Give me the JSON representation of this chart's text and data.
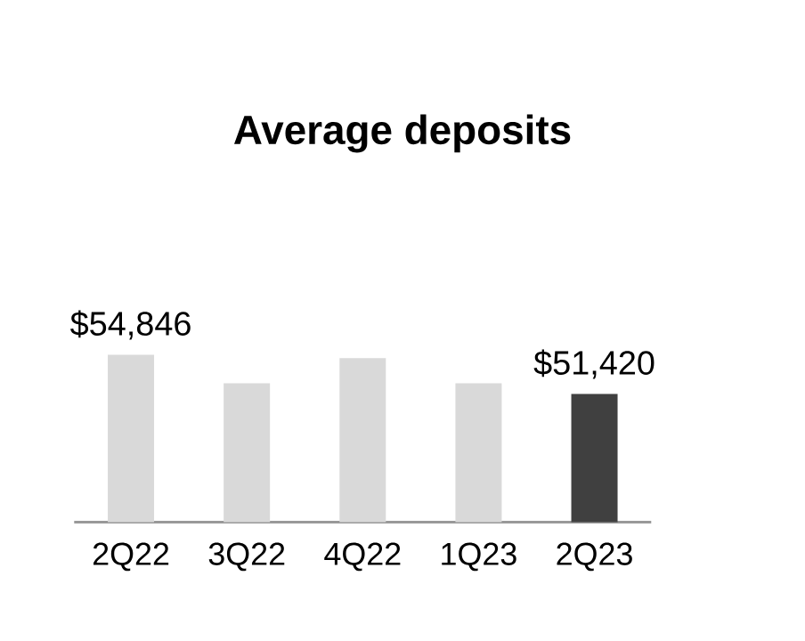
{
  "chart_data": {
    "type": "bar",
    "title": "Average deposits",
    "categories": [
      "2Q22",
      "3Q22",
      "4Q22",
      "1Q23",
      "2Q23"
    ],
    "values": [
      54846,
      52350,
      54550,
      52350,
      51420
    ],
    "colors": [
      "#d9d9d9",
      "#d9d9d9",
      "#d9d9d9",
      "#d9d9d9",
      "#404040"
    ],
    "value_labels": [
      "$54,846",
      null,
      null,
      null,
      "$51,420"
    ],
    "ylim": [
      40200,
      54846
    ],
    "tick_labels": "x"
  }
}
